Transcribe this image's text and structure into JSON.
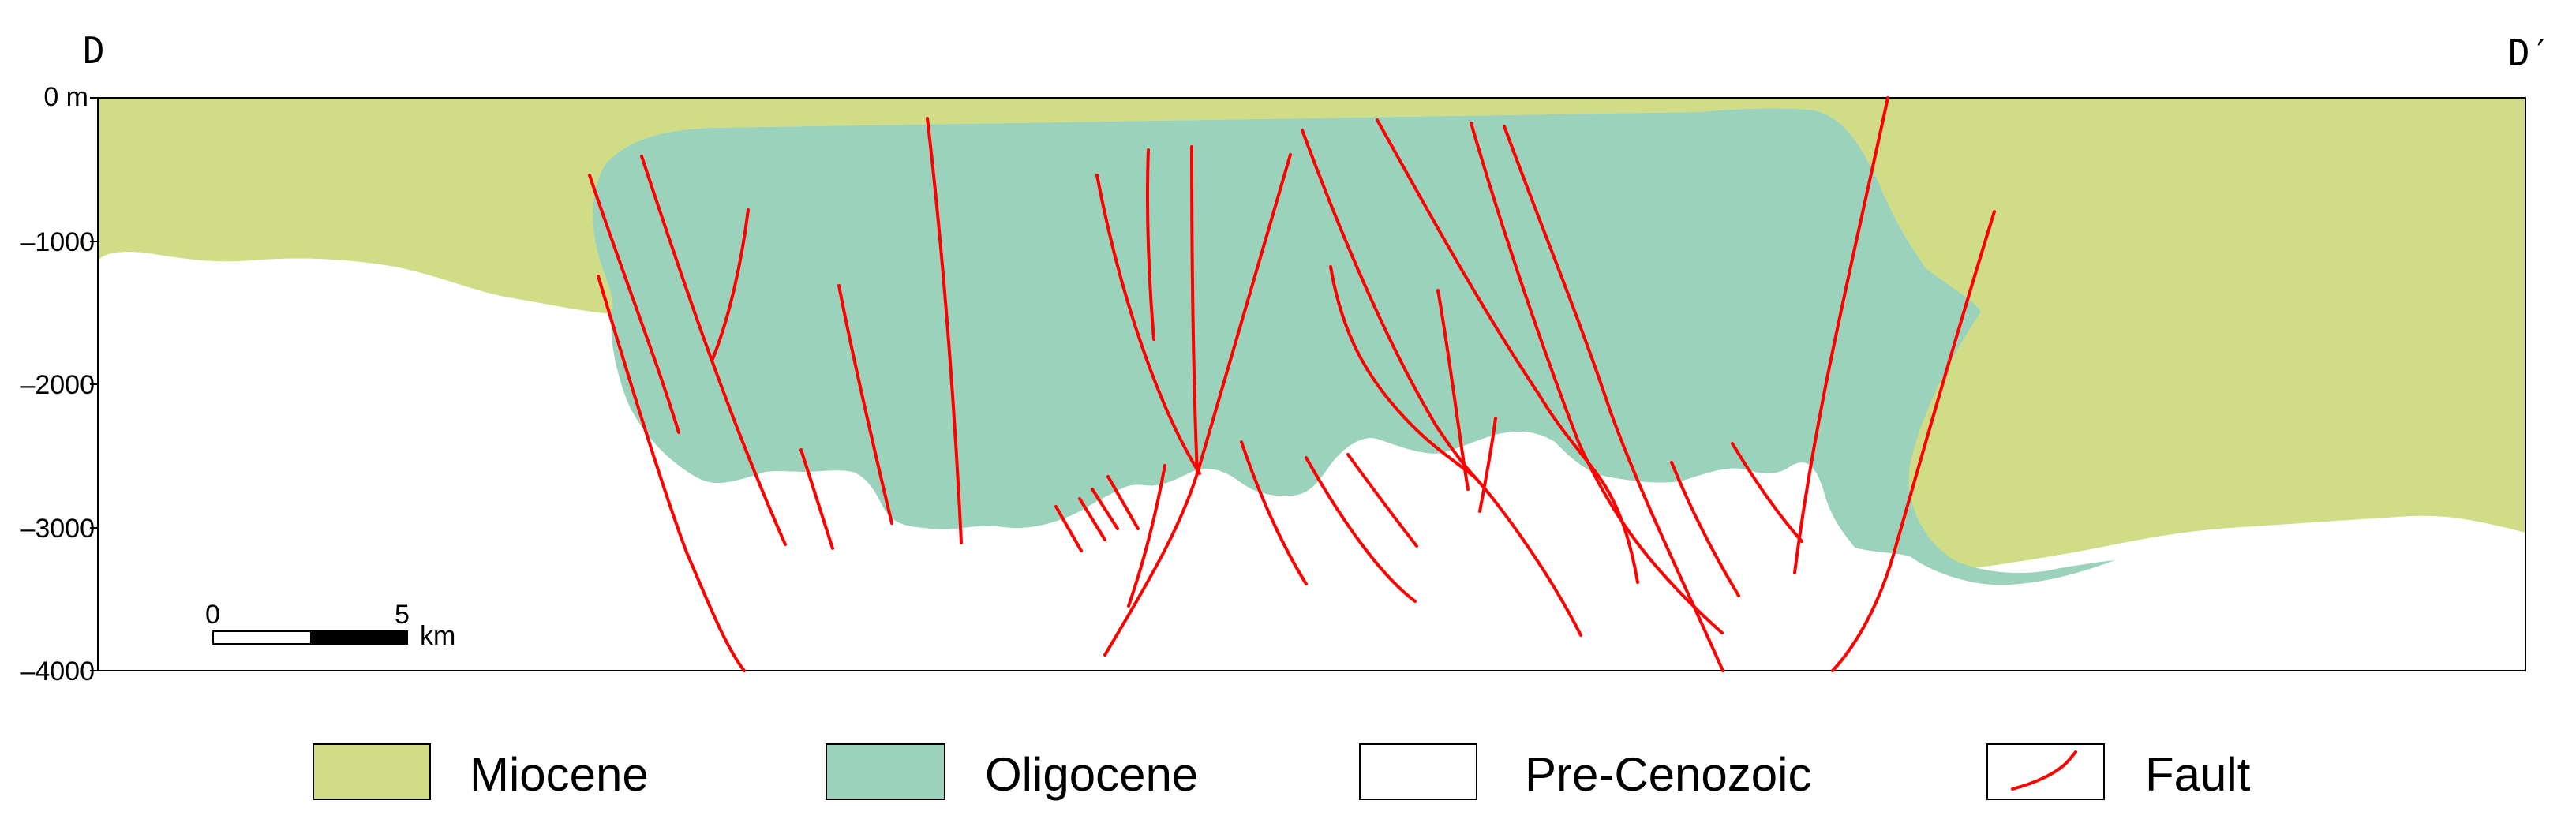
{
  "section": {
    "left_label": "D",
    "right_label": "D′"
  },
  "depth_axis": {
    "ticks": [
      "0 m",
      "–1000",
      "–2000",
      "–3000",
      "–4000"
    ]
  },
  "scale_bar": {
    "start": "0",
    "end": "5",
    "unit": "km"
  },
  "legend": [
    {
      "label": "Miocene",
      "color": "#d1dc86",
      "symbol": "fill"
    },
    {
      "label": "Oligocene",
      "color": "#9ad2bc",
      "symbol": "fill"
    },
    {
      "label": "Pre-Cenozoic",
      "color": "#ffffff",
      "symbol": "fill"
    },
    {
      "label": "Fault",
      "color": "#ff0000",
      "symbol": "line"
    }
  ]
}
